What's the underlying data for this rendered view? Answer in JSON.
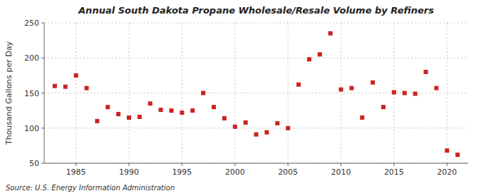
{
  "chart_data": {
    "type": "scatter",
    "title": "Annual South Dakota Propane Wholesale/Resale Volume by Refiners",
    "ylabel": "Thousand Gallons per Day",
    "source": "Source: U.S. Energy Information Administration",
    "x": [
      1983,
      1984,
      1985,
      1986,
      1987,
      1988,
      1989,
      1990,
      1991,
      1992,
      1993,
      1994,
      1995,
      1996,
      1997,
      1998,
      1999,
      2000,
      2001,
      2002,
      2003,
      2004,
      2005,
      2006,
      2007,
      2008,
      2009,
      2010,
      2011,
      2012,
      2013,
      2014,
      2015,
      2016,
      2017,
      2018,
      2019,
      2020,
      2021
    ],
    "values": [
      160,
      159,
      175,
      157,
      110,
      130,
      120,
      115,
      116,
      135,
      126,
      125,
      122,
      125,
      150,
      130,
      114,
      102,
      108,
      91,
      94,
      107,
      100,
      162,
      198,
      205,
      235,
      155,
      157,
      115,
      165,
      130,
      151,
      150,
      149,
      180,
      157,
      68,
      62
    ],
    "color": "#cc2222",
    "marker": "square",
    "xlim": [
      1982,
      2022
    ],
    "ylim": [
      50,
      250
    ],
    "xticks": [
      1985,
      1990,
      1995,
      2000,
      2005,
      2010,
      2015,
      2020
    ],
    "yticks": [
      50,
      100,
      150,
      200,
      250
    ],
    "grid": true
  }
}
